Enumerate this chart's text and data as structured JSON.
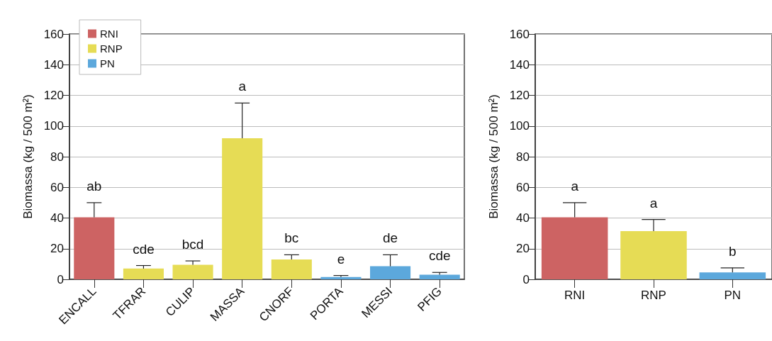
{
  "chart_data": [
    {
      "type": "bar",
      "ylabel": "Biomassa (kg / 500 m²)",
      "categories": [
        "ENCALL",
        "TFRAR",
        "CULIP",
        "MASSA",
        "CNORF",
        "PORTA",
        "MESSI",
        "PFIG"
      ],
      "series": [
        {
          "name": "RNI",
          "color": "#cd6363",
          "values": [
            40.5,
            null,
            null,
            null,
            null,
            null,
            null,
            null
          ],
          "errors": [
            [
              40.5,
              50
            ],
            null,
            null,
            null,
            null,
            null,
            null,
            null
          ]
        },
        {
          "name": "RNP",
          "color": "#e6dc55",
          "values": [
            null,
            7,
            9.5,
            92,
            13,
            null,
            null,
            null
          ],
          "errors": [
            null,
            [
              7,
              9
            ],
            [
              9.5,
              12
            ],
            [
              92,
              115
            ],
            [
              13,
              16
            ],
            null,
            null,
            null
          ]
        },
        {
          "name": "PN",
          "color": "#5ca8dc",
          "values": [
            null,
            null,
            null,
            null,
            null,
            1.5,
            8.5,
            3
          ],
          "errors": [
            null,
            null,
            null,
            null,
            null,
            [
              1.5,
              2.5
            ],
            [
              8.5,
              16
            ],
            [
              3,
              4.5
            ]
          ]
        }
      ],
      "annotations": [
        "ab",
        "cde",
        "bcd",
        "a",
        "bc",
        "e",
        "de",
        "cde"
      ],
      "ylim": [
        0,
        160
      ],
      "yticks": [
        0,
        20,
        40,
        60,
        80,
        100,
        120,
        140,
        160
      ],
      "grid": "y",
      "legend": "top left"
    },
    {
      "type": "bar",
      "ylabel": "Biomassa (kg / 500 m²)",
      "categories": [
        "RNI",
        "RNP",
        "PN"
      ],
      "colors": [
        "#cd6363",
        "#e6dc55",
        "#5ca8dc"
      ],
      "values": [
        40.5,
        31.5,
        4.5
      ],
      "errors": [
        [
          40.5,
          50
        ],
        [
          31.5,
          39
        ],
        [
          4.5,
          7.5
        ]
      ],
      "annotations": [
        "a",
        "a",
        "b"
      ],
      "ylim": [
        0,
        160
      ],
      "yticks": [
        0,
        20,
        40,
        60,
        80,
        100,
        120,
        140,
        160
      ],
      "grid": "y"
    }
  ]
}
